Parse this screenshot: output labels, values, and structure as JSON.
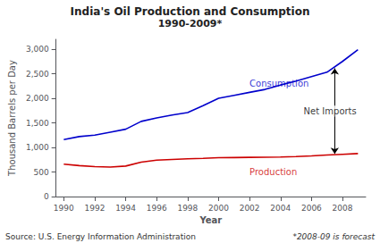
{
  "chart_data": {
    "type": "line",
    "title": "India's Oil Production and Consumption",
    "subtitle": "1990-2009*",
    "xlabel": "Year",
    "ylabel": "Thousand Barrels per Day",
    "source": "Source: U.S. Energy Information Administration",
    "note": "*2008-09 is forecast",
    "x": [
      1990,
      1991,
      1992,
      1993,
      1994,
      1995,
      1996,
      1997,
      1998,
      1999,
      2000,
      2001,
      2002,
      2003,
      2004,
      2005,
      2006,
      2007,
      2008,
      2009
    ],
    "series": [
      {
        "name": "Consumption",
        "color": "#0000CC",
        "values": [
          1160,
          1220,
          1250,
          1310,
          1370,
          1530,
          1600,
          1660,
          1710,
          1850,
          2000,
          2060,
          2120,
          2180,
          2270,
          2350,
          2440,
          2530,
          2750,
          2990
        ]
      },
      {
        "name": "Production",
        "color": "#CC0000",
        "values": [
          660,
          630,
          610,
          600,
          620,
          700,
          740,
          755,
          768,
          778,
          790,
          793,
          797,
          800,
          805,
          815,
          828,
          845,
          860,
          875
        ]
      }
    ],
    "xlim": [
      1989.5,
      2009.5
    ],
    "xticks": [
      1990,
      1992,
      1994,
      1996,
      1998,
      2000,
      2002,
      2004,
      2006,
      2008
    ],
    "ylim": [
      0,
      3200
    ],
    "yticks": [
      0,
      500,
      {
        "value": 1000,
        "label": "1,000"
      },
      {
        "value": 1500,
        "label": "1,500"
      },
      {
        "value": 2000,
        "label": "2,000"
      },
      {
        "value": 2500,
        "label": "2,500"
      },
      {
        "value": 3000,
        "label": "3,000"
      }
    ],
    "annotations": [
      {
        "text": "Consumption",
        "x": 2002.0,
        "y": 2210,
        "color": "#0000CC"
      },
      {
        "text": "Production",
        "x": 2002.0,
        "y": 600,
        "color": "#CC0000"
      },
      {
        "text": "Net Imports",
        "x": 2007.2,
        "y": 1740,
        "arrow": {
          "x": 2007.5,
          "from": 2610,
          "to": 870
        }
      }
    ],
    "grid": false
  }
}
